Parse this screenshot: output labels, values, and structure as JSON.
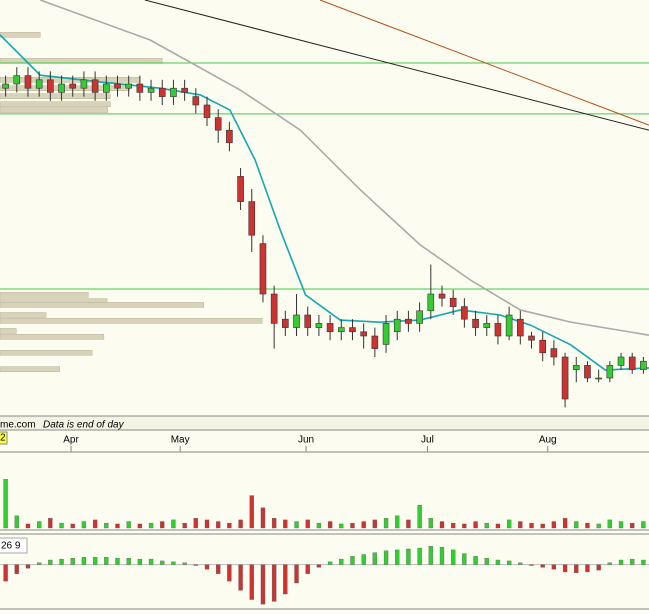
{
  "chart_data": [
    {
      "type": "candlestick",
      "source": "me.com",
      "note": "Data is end of day",
      "badge": "2",
      "x": [
        1,
        3,
        5,
        7,
        9,
        11,
        13,
        15,
        17,
        19,
        21,
        23,
        25,
        27,
        29,
        31,
        33,
        35,
        37,
        39,
        41,
        43,
        45,
        47,
        49,
        51,
        53,
        55,
        57,
        59,
        61,
        63,
        65,
        67,
        69,
        71,
        73,
        75,
        77,
        79,
        81,
        83,
        85,
        87,
        89,
        91,
        93,
        95,
        97,
        99,
        101,
        103,
        105,
        107,
        109,
        111,
        113,
        115
      ],
      "open": [
        79,
        80,
        82,
        79,
        81,
        78,
        80,
        79,
        81,
        78,
        80,
        79,
        80,
        78,
        79,
        77,
        79,
        77,
        75,
        72,
        69,
        58,
        52,
        42,
        30,
        24,
        22,
        25,
        22,
        23,
        21,
        22,
        21,
        20,
        18,
        21,
        24,
        23,
        26,
        30,
        29,
        27,
        24,
        22,
        23,
        20,
        24,
        20,
        19,
        17,
        15,
        12,
        13,
        10,
        10,
        13,
        15,
        12
      ],
      "high": [
        82,
        84,
        84,
        83,
        83,
        82,
        82,
        83,
        83,
        82,
        82,
        82,
        82,
        81,
        81,
        81,
        81,
        79,
        77,
        74,
        71,
        60,
        55,
        44,
        32,
        26,
        30,
        27,
        25,
        25,
        24,
        24,
        23,
        22,
        25,
        26,
        26,
        28,
        37,
        32,
        31,
        29,
        26,
        25,
        25,
        27,
        26,
        21,
        21,
        19,
        16,
        15,
        14,
        12,
        14,
        16,
        16,
        15
      ],
      "low": [
        77,
        78,
        77,
        77,
        76,
        76,
        77,
        77,
        76,
        76,
        77,
        77,
        76,
        76,
        75,
        75,
        76,
        73,
        70,
        66,
        64,
        50,
        40,
        28,
        17,
        20,
        20,
        20,
        20,
        19,
        19,
        19,
        17,
        15,
        16,
        19,
        21,
        21,
        24,
        27,
        25,
        22,
        20,
        20,
        18,
        19,
        18,
        17,
        14,
        13,
        3,
        9,
        9,
        9,
        9,
        12,
        11,
        11
      ],
      "close": [
        80,
        82,
        79,
        81,
        78,
        80,
        79,
        81,
        78,
        80,
        79,
        80,
        78,
        79,
        77,
        79,
        78,
        75,
        72,
        69,
        66,
        52,
        44,
        30,
        23,
        22,
        25,
        22,
        23,
        21,
        22,
        21,
        20,
        17,
        23,
        24,
        23,
        26,
        30,
        29,
        27,
        24,
        22,
        23,
        20,
        25,
        20,
        19,
        16,
        15,
        5,
        13,
        10,
        10,
        13,
        15,
        12,
        14
      ],
      "up_color": "#33cc33",
      "down_color": "#cc3333",
      "xlim": [
        0,
        116
      ],
      "ylim": [
        0,
        100
      ],
      "xticks": [
        {
          "value": 12.7,
          "label": "Apr"
        },
        {
          "value": 32.2,
          "label": "May"
        },
        {
          "value": 54.7,
          "label": "Jun"
        },
        {
          "value": 76.4,
          "label": "Jul"
        },
        {
          "value": 97.9,
          "label": "Aug"
        }
      ],
      "overlays": [
        {
          "color": "#13a8b0",
          "x": [
            0,
            7.2,
            17.9,
            28.6,
            35.8,
            41.1,
            45.6,
            50.1,
            54.6,
            60.8,
            68,
            75.1,
            82.3,
            89.4,
            94.8,
            102,
            108.2,
            116
          ],
          "values": [
            91.7,
            82.1,
            80.5,
            79,
            77.4,
            73.8,
            61.9,
            45.2,
            29.8,
            23.8,
            23.3,
            23.8,
            26.2,
            25,
            22.6,
            17.9,
            11.9,
            12.4
          ]
        },
        {
          "color": "#aaaaaa",
          "x": [
            7.2,
            26.8,
            42.9,
            53.7,
            64.4,
            75.1,
            84.1,
            93,
            102,
            116
          ],
          "values": [
            100,
            90.5,
            78.6,
            69,
            54.8,
            41.7,
            33.3,
            26.2,
            23.3,
            20.2
          ]
        },
        {
          "color": "#222222",
          "x": [
            25.9,
            116
          ],
          "values": [
            100,
            69
          ]
        },
        {
          "color": "#b5501a",
          "x": [
            57.2,
            116
          ],
          "values": [
            100,
            70.2
          ]
        }
      ],
      "hlines": {
        "color": "#44cc44",
        "values": [
          85,
          72.9,
          31.2
        ]
      },
      "volume_profile": {
        "color": "#d8d3b8",
        "xlim": [
          0,
          100
        ],
        "prices": [
          91.7,
          85.5,
          81,
          79,
          77.1,
          75.2,
          73.8,
          29.8,
          28.3,
          27.4,
          25,
          23.6,
          21.2,
          19.8,
          16,
          12.1
        ],
        "values": [
          6.2,
          25,
          21.6,
          20,
          17,
          17,
          16.6,
          13.6,
          16.5,
          31.4,
          7.1,
          40.4,
          2.5,
          16,
          14.2,
          9.2
        ]
      }
    },
    {
      "type": "bar",
      "values": [
        60,
        15,
        5,
        8,
        12,
        6,
        5,
        8,
        10,
        6,
        5,
        8,
        5,
        6,
        8,
        10,
        6,
        12,
        10,
        8,
        6,
        10,
        40,
        25,
        12,
        10,
        8,
        10,
        6,
        8,
        5,
        6,
        8,
        10,
        12,
        15,
        10,
        28,
        12,
        8,
        6,
        5,
        8,
        6,
        5,
        10,
        8,
        6,
        5,
        8,
        12,
        8,
        6,
        5,
        10,
        8,
        6,
        8
      ],
      "ylim": [
        0,
        90
      ]
    },
    {
      "type": "bar",
      "label": "26 9",
      "values": [
        -18,
        -10,
        -4,
        2,
        5,
        6,
        7,
        8,
        8,
        8,
        7,
        7,
        6,
        6,
        4,
        3,
        2,
        -1,
        -5,
        -10,
        -18,
        -28,
        -38,
        -43,
        -40,
        -32,
        -20,
        -10,
        -3,
        3,
        6,
        9,
        11,
        13,
        15,
        16,
        17,
        18,
        20,
        19,
        16,
        12,
        9,
        7,
        5,
        4,
        2,
        -1,
        -3,
        -5,
        -8,
        -9,
        -8,
        -6,
        2,
        5,
        6,
        5
      ],
      "up_color": "#33cc33",
      "down_color": "#cc3333",
      "ylim": [
        -45,
        30
      ]
    }
  ]
}
